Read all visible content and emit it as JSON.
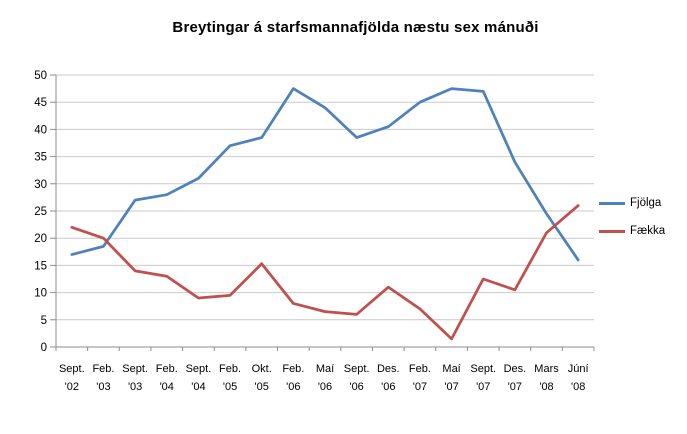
{
  "chart_data": {
    "type": "line",
    "title": "Breytingar á starfsmannafjölda næstu sex mánuði",
    "categories": [
      "Sept. '02",
      "Feb. '03",
      "Sept. '03",
      "Feb. '04",
      "Sept. '04",
      "Feb. '05",
      "Okt. '05",
      "Feb. '06",
      "Maí '06",
      "Sept. '06",
      "Des. '06",
      "Feb. '07",
      "Maí '07",
      "Sept. '07",
      "Des. '07",
      "Mars '08",
      "Júní '08"
    ],
    "series": [
      {
        "name": "Fjölga",
        "color": "#4F81BD",
        "values": [
          17,
          18.5,
          27,
          28,
          31,
          37,
          38.5,
          47.5,
          44,
          38.5,
          40.5,
          45,
          47.5,
          47,
          34,
          24.5,
          16
        ]
      },
      {
        "name": "Fækka",
        "color": "#C0504D",
        "values": [
          22,
          20,
          14,
          13,
          9,
          9.5,
          15.3,
          8,
          6.5,
          6,
          11,
          7,
          1.5,
          12.5,
          10.5,
          21,
          26
        ]
      }
    ],
    "xlabel": "",
    "ylabel": "",
    "ylim": [
      0,
      50
    ],
    "yticks": [
      0,
      5,
      10,
      15,
      20,
      25,
      30,
      35,
      40,
      45,
      50
    ],
    "grid": true,
    "legend_position": "right"
  },
  "colors": {
    "grid": "#C9C9C9",
    "axis": "#8C8C8C",
    "text": "#000000",
    "background": "#FFFFFF"
  }
}
